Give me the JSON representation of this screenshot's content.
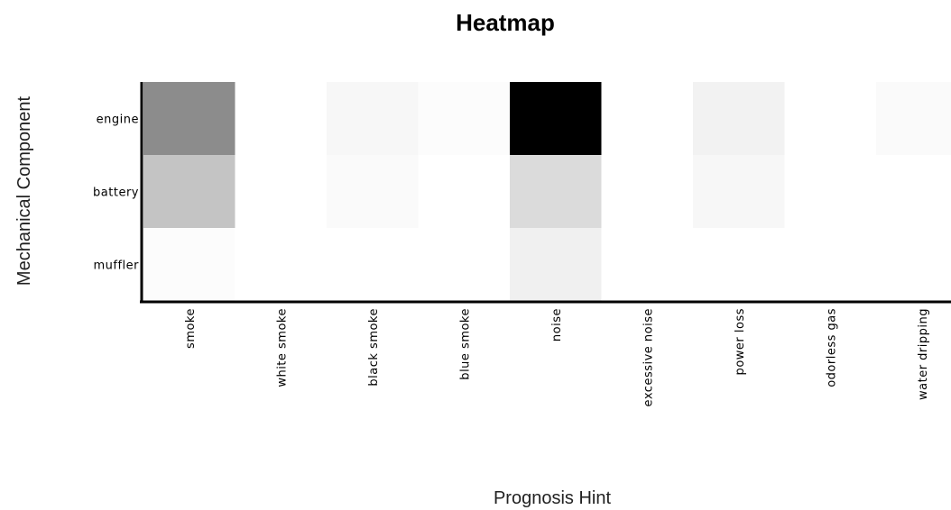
{
  "chart_data": {
    "type": "heatmap",
    "title": "Heatmap",
    "xlabel": "Prognosis Hint",
    "ylabel": "Mechanical Component",
    "x_categories": [
      "smoke",
      "white smoke",
      "black smoke",
      "blue smoke",
      "noise",
      "excessive noise",
      "power loss",
      "odorless gas",
      "water dripping"
    ],
    "y_categories": [
      "engine",
      "battery",
      "muffler"
    ],
    "values": [
      [
        0.45,
        0.0,
        0.03,
        0.01,
        1.0,
        0.0,
        0.05,
        0.0,
        0.02
      ],
      [
        0.23,
        0.0,
        0.02,
        0.0,
        0.14,
        0.0,
        0.03,
        0.0,
        0.0
      ],
      [
        0.01,
        0.0,
        0.0,
        0.0,
        0.06,
        0.0,
        0.0,
        0.0,
        0.0
      ]
    ],
    "colormap": {
      "low": "#ffffff",
      "high": "#000000"
    },
    "grid": false,
    "legend": "none"
  }
}
